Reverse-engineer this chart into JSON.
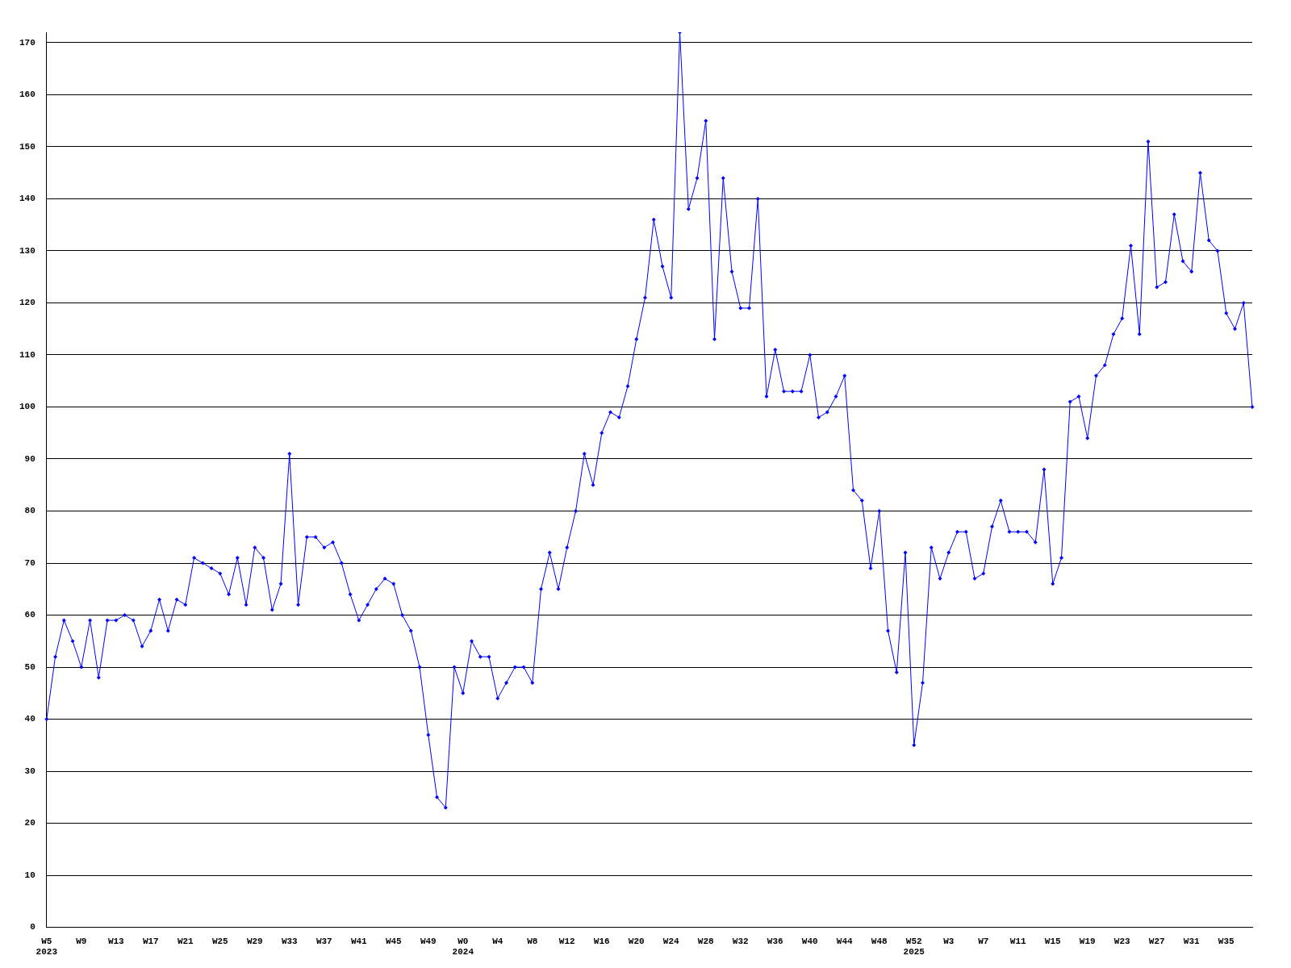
{
  "chart_data": {
    "type": "line",
    "categories": [
      "W5\n2023",
      null,
      null,
      null,
      "W9",
      null,
      null,
      null,
      "W13",
      null,
      null,
      null,
      "W17",
      null,
      null,
      null,
      "W21",
      null,
      null,
      null,
      "W25",
      null,
      null,
      null,
      "W29",
      null,
      null,
      null,
      "W33",
      null,
      null,
      null,
      "W37",
      null,
      null,
      null,
      "W41",
      null,
      null,
      null,
      "W45",
      null,
      null,
      null,
      "W49",
      null,
      null,
      null,
      "W0\n2024",
      null,
      null,
      null,
      "W4",
      null,
      null,
      null,
      "W8",
      null,
      null,
      null,
      "W12",
      null,
      null,
      null,
      "W16",
      null,
      null,
      null,
      "W20",
      null,
      null,
      null,
      "W24",
      null,
      null,
      null,
      "W28",
      null,
      null,
      null,
      "W32",
      null,
      null,
      null,
      "W36",
      null,
      null,
      null,
      "W40",
      null,
      null,
      null,
      "W44",
      null,
      null,
      null,
      "W48",
      null,
      null,
      null,
      "W52\n2025",
      null,
      null,
      null,
      "W3",
      null,
      null,
      null,
      "W7",
      null,
      null,
      null,
      "W11",
      null,
      null,
      null,
      "W15",
      null,
      null,
      null,
      "W19",
      null,
      null,
      null,
      "W23",
      null,
      null,
      null,
      "W27",
      null,
      null,
      null,
      "W31",
      null,
      null,
      null,
      "W35",
      null,
      null,
      null
    ],
    "series": [
      {
        "color": "#0000ff",
        "values": [
          40,
          52,
          59,
          55,
          50,
          59,
          48,
          59,
          59,
          60,
          59,
          54,
          57,
          63,
          57,
          63,
          62,
          71,
          70,
          69,
          68,
          64,
          71,
          62,
          73,
          71,
          61,
          66,
          91,
          62,
          75,
          75,
          73,
          74,
          70,
          64,
          59,
          62,
          65,
          67,
          66,
          60,
          57,
          50,
          37,
          25,
          23,
          50,
          45,
          55,
          52,
          52,
          44,
          47,
          50,
          50,
          47,
          65,
          72,
          65,
          73,
          80,
          91,
          85,
          95,
          99,
          98,
          104,
          113,
          121,
          136,
          127,
          121,
          172,
          138,
          144,
          155,
          113,
          144,
          126,
          119,
          119,
          140,
          102,
          111,
          103,
          103,
          103,
          110,
          98,
          99,
          102,
          106,
          84,
          82,
          69,
          80,
          57,
          49,
          72,
          35,
          47,
          73,
          67,
          72,
          76,
          76,
          67,
          68,
          77,
          82,
          76,
          76,
          76,
          74,
          88,
          66,
          71,
          101,
          102,
          94,
          106,
          108,
          114,
          117,
          131,
          114,
          151,
          123,
          124,
          137,
          128,
          126,
          145,
          132,
          130,
          118,
          115,
          120,
          100
        ]
      }
    ],
    "ylim": [
      0,
      172
    ],
    "yticks": [
      0,
      10,
      20,
      30,
      40,
      50,
      60,
      70,
      80,
      90,
      100,
      110,
      120,
      130,
      140,
      150,
      160,
      170
    ],
    "grid": "y",
    "legend": false,
    "marker": "diamond",
    "line_style": "solid"
  }
}
